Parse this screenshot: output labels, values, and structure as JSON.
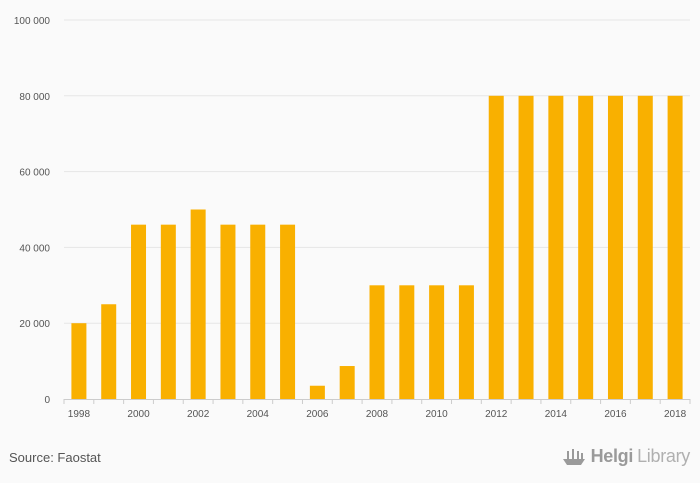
{
  "chart_data": {
    "type": "bar",
    "categories": [
      "1998",
      "1999",
      "2000",
      "2001",
      "2002",
      "2003",
      "2004",
      "2005",
      "2006",
      "2007",
      "2008",
      "2009",
      "2010",
      "2011",
      "2012",
      "2013",
      "2014",
      "2015",
      "2016",
      "2017",
      "2018"
    ],
    "tick_labels": [
      "1998",
      "2000",
      "2002",
      "2004",
      "2006",
      "2008",
      "2010",
      "2012",
      "2014",
      "2016",
      "2018"
    ],
    "values": [
      20000,
      25000,
      46000,
      46000,
      50000,
      46000,
      46000,
      46000,
      3500,
      8700,
      30000,
      30000,
      30000,
      30000,
      80000,
      80000,
      80000,
      80000,
      80000,
      80000,
      80000
    ],
    "y_ticks": [
      0,
      20000,
      40000,
      60000,
      80000,
      100000
    ],
    "y_tick_labels": [
      "0",
      "20 000",
      "40 000",
      "60 000",
      "80 000",
      "100 000"
    ],
    "ylim": [
      0,
      100000
    ],
    "grid": true,
    "bar_color": "#f9b000",
    "title": "",
    "xlabel": "",
    "ylabel": ""
  },
  "footer": {
    "source": "Source: Faostat",
    "brand_bold": "Helgi",
    "brand_light": "Library"
  }
}
